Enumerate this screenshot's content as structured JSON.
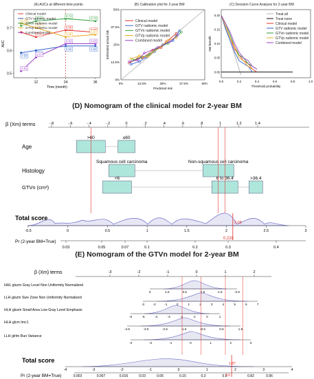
{
  "chart_data": [
    {
      "type": "line",
      "title": "(A) AUCs at different time points",
      "xlabel": "Time (month)",
      "ylabel": "AUC",
      "xticks": [
        "12",
        "24",
        "36"
      ],
      "yticks": [
        "0.5",
        "0.6",
        "0.7"
      ],
      "x": [
        6,
        12,
        24,
        36
      ],
      "ylim": [
        0.48,
        0.78
      ],
      "series": [
        {
          "name": "Clinical model",
          "color": "#e0302a",
          "values": [
            0.68,
            0.66,
            0.69,
            0.68
          ],
          "labels": [
            "",
            "0.66",
            "0.69",
            "0.68"
          ]
        },
        {
          "name": "GTV radiomic model",
          "color": "#3366cc",
          "values": [
            0.59,
            0.6,
            0.62,
            0.62
          ],
          "labels": [
            "0.59",
            "0.6",
            "0.62",
            "0.62"
          ]
        },
        {
          "name": "GTVn radiomic model",
          "color": "#2e9d3a",
          "values": [
            0.71,
            0.73,
            0.74,
            0.73
          ],
          "labels": [
            "0.71",
            "0.73",
            "0.74",
            "0.73"
          ]
        },
        {
          "name": "GTVp radiomic model",
          "color": "#e8a820",
          "values": [
            0.72,
            0.7,
            0.66,
            0.67
          ],
          "labels": [
            "0.72",
            "0.7",
            "0.66",
            "0.67"
          ]
        },
        {
          "name": "Combined model",
          "color": "#9b3fc8",
          "values": [
            0.51,
            0.57,
            0.63,
            0.63
          ],
          "labels": [
            "0.51",
            "0.57",
            "0.63",
            "0.63"
          ]
        }
      ],
      "annotations": [
        "0.63"
      ]
    },
    {
      "type": "line",
      "title": "(B) Calibration plot for 2-year BM",
      "xlabel": "Predicted risk",
      "ylabel": "Estimated actual risk",
      "xticks": [
        "0%",
        "12.5%",
        "25%",
        "37.5%",
        "50%"
      ],
      "yticks": [
        "0%",
        "12.5%",
        "25%",
        "37.5%",
        "50%"
      ],
      "xlim": [
        0,
        50
      ],
      "ylim": [
        0,
        50
      ],
      "series": [
        {
          "name": "Clinical model",
          "color": "#e0302a",
          "x": [
            5,
            10,
            13,
            19,
            24,
            27,
            33
          ],
          "y": [
            12,
            15,
            15.5,
            21,
            23,
            27,
            33
          ]
        },
        {
          "name": "GTV radiomic model",
          "color": "#3366cc",
          "x": [
            6,
            11,
            15,
            20,
            25,
            31,
            35
          ],
          "y": [
            11,
            13,
            16,
            20,
            25,
            28,
            35
          ]
        },
        {
          "name": "GTVn radiomic model",
          "color": "#2e9d3a",
          "x": [
            7,
            12,
            17,
            21,
            28,
            33,
            36
          ],
          "y": [
            14,
            16,
            18,
            22,
            26,
            31,
            34
          ]
        },
        {
          "name": "GTVp radiomic model",
          "color": "#e8a820",
          "x": [
            6,
            11,
            16,
            23,
            28,
            33
          ],
          "y": [
            15,
            17,
            16.5,
            23,
            28,
            30
          ]
        },
        {
          "name": "Combined model",
          "color": "#9b3fc8",
          "x": [
            5,
            10,
            14,
            22,
            29,
            34
          ],
          "y": [
            13,
            14,
            19,
            23,
            27,
            32
          ]
        }
      ]
    },
    {
      "type": "line",
      "title": "(C) Decision Curve Analysis for 2-year BM",
      "xlabel": "Threshold probability",
      "ylabel": "Net benefit",
      "xticks": [
        "0.0",
        "0.2",
        "0.4",
        "0.6",
        "0.8",
        "1.0"
      ],
      "yticks": [
        "0.00",
        "0.05",
        "0.10",
        "0.15",
        "0.20"
      ],
      "xlim": [
        0,
        1
      ],
      "ylim": [
        -0.02,
        0.22
      ],
      "series": [
        {
          "name": "Treat all",
          "color": "#b0b0b0",
          "x": [
            0,
            0.1,
            0.2,
            0.22
          ],
          "y": [
            0.2,
            0.11,
            0.01,
            -0.01
          ]
        },
        {
          "name": "Treat none",
          "color": "#111111",
          "x": [
            0,
            0.8
          ],
          "y": [
            0,
            0
          ]
        },
        {
          "name": "Clinical model",
          "color": "#e0302a",
          "x": [
            0,
            0.05,
            0.1,
            0.15,
            0.2,
            0.25,
            0.3,
            0.35,
            0.4
          ],
          "y": [
            0.2,
            0.16,
            0.12,
            0.08,
            0.06,
            0.04,
            0.03,
            0.01,
            0
          ]
        },
        {
          "name": "GTV radiomic model",
          "color": "#3366cc",
          "x": [
            0,
            0.05,
            0.1,
            0.15,
            0.2,
            0.25,
            0.3,
            0.35
          ],
          "y": [
            0.2,
            0.15,
            0.11,
            0.07,
            0.04,
            0.03,
            0.02,
            0
          ]
        },
        {
          "name": "GTVn radiomic model",
          "color": "#2e9d3a",
          "x": [
            0,
            0.05,
            0.1,
            0.15,
            0.2,
            0.25,
            0.3,
            0.35,
            0.4
          ],
          "y": [
            0.2,
            0.17,
            0.13,
            0.09,
            0.06,
            0.05,
            0.03,
            0.02,
            0.01
          ]
        },
        {
          "name": "GTVp radiomic model",
          "color": "#e8a820",
          "x": [
            0,
            0.05,
            0.1,
            0.15,
            0.2,
            0.25,
            0.3,
            0.35
          ],
          "y": [
            0.2,
            0.16,
            0.12,
            0.09,
            0.05,
            0.04,
            0.02,
            0.01
          ]
        },
        {
          "name": "Combined model",
          "color": "#9b3fc8",
          "x": [
            0,
            0.05,
            0.1,
            0.15,
            0.2,
            0.25,
            0.3,
            0.35,
            0.4
          ],
          "y": [
            0.2,
            0.17,
            0.14,
            0.1,
            0.07,
            0.05,
            0.04,
            0.02,
            0.01
          ]
        }
      ]
    }
  ],
  "nomogram_d": {
    "title": "(D) Nomogram of the clinical model for 2-year BM",
    "beta_label": "β (Xm) terms",
    "beta_ticks": [
      "-.8",
      "-.6",
      "-.4",
      "-.2",
      "0",
      ".2",
      ".4",
      ".6",
      ".8",
      "1",
      "1.2",
      "1.4"
    ],
    "rows": [
      {
        "label": "Age",
        "boxes": [
          {
            "text": ">60",
            "value": -0.38
          },
          {
            "text": "≤60",
            "value": 0.0
          }
        ]
      },
      {
        "label": "Histology",
        "boxes": [
          {
            "text": "Squamous cell carcinoma",
            "value": -0.05
          },
          {
            "text": "Non-squamous cell carcinoma",
            "value": 0.98
          }
        ]
      },
      {
        "label": "GTVn (cm³)",
        "boxes": [
          {
            "text": "<6",
            "value": -0.1
          },
          {
            "text": "6 to 36.4",
            "value": 1.05
          },
          {
            "text": ">36.4",
            "value": 1.38
          }
        ]
      }
    ],
    "total_label": "Total score",
    "total_ticks": [
      "-0.5",
      "0",
      "0.5",
      "1",
      "1.5",
      "2",
      "2.5",
      "3"
    ],
    "total_marker": "2.08",
    "pr_label": "Pr (2-year BM=True)",
    "pr_ticks": [
      "0.03",
      "0.05",
      "0.07",
      "0.1",
      "0.2",
      "0.3",
      "0.4"
    ],
    "pr_marker": "0.226"
  },
  "nomogram_e": {
    "title": "(E) Nomogram of the GTVn model for 2-year BM",
    "beta_label": "β (Xm) terms",
    "beta_ticks": [
      "-3",
      "-2",
      "-1",
      "0",
      "1",
      "2"
    ],
    "rows": [
      {
        "label": "HHL glszm Gray Level Non Uniformity Normalized",
        "ticks": [
          "3",
          "1.5",
          "0.5",
          "-0.5",
          "-1.5",
          "-2.5"
        ]
      },
      {
        "label": "LLH glszm Size Zone Non Uniformity Normalized",
        "ticks": [
          "-3",
          "-2",
          "-1",
          "0",
          "1",
          "2",
          "3",
          "4",
          "5",
          "6",
          "7"
        ]
      },
      {
        "label": "HLH glszm Small Area Low Gray Level Emphasis",
        "ticks": [
          "-6",
          "-5",
          "-4",
          "-3",
          "-2",
          "-1",
          "0",
          "1"
        ]
      },
      {
        "label": "HLH glcm Imc1",
        "ticks": [
          "-4.5",
          "-3.5",
          "-2.5",
          "-1.5",
          "-0.5",
          "0.5",
          "1.5"
        ]
      },
      {
        "label": "LLH glrlm Run Variance",
        "ticks": [
          "-3",
          "-2",
          "-1",
          "0",
          "1",
          "2",
          "3"
        ]
      }
    ],
    "total_label": "Total score",
    "total_ticks": [
      "-4",
      "-3",
      "-2",
      "-1",
      "0",
      "1",
      "2",
      "3",
      "4"
    ],
    "total_marker": "1.87",
    "pr_label": "Pr (2-year BM=True)",
    "pr_ticks": [
      "0.003",
      "0.007",
      "0.016",
      "0.03",
      "0.06",
      "0.15",
      "0.3",
      "0.5",
      "0.82",
      "0.96"
    ],
    "pr_marker": "0.6"
  }
}
